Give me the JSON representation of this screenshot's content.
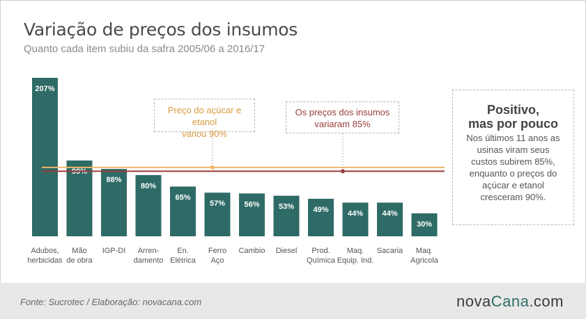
{
  "title": "Variação de preços dos insumos",
  "subtitle": "Quanto cada item subiu da safra 2005/06 a 2016/17",
  "callouts": {
    "sugar": [
      "Preço do açúcar e etanol",
      "variou 90%"
    ],
    "inputs": [
      "Os preços dos insumos",
      "variaram 85%"
    ]
  },
  "side": {
    "heading": [
      "Positivo,",
      "mas por pouco"
    ],
    "body": [
      "Nos últimos 11 anos as",
      "usinas viram seus",
      "custos subirem 85%,",
      "enquanto o preços do",
      "açúcar e etanol",
      "cresceram 90%."
    ]
  },
  "footer": {
    "source": "Fonte:  Sucrotec / Elaboração: novacana.com",
    "logo_main": "nova",
    "logo_accent": "Cana",
    "logo_tail": ".com"
  },
  "colors": {
    "bar": "#2f6b66",
    "sugar_line": "#f0b66a",
    "inputs_line": "#9a3b3b",
    "label_text": "#ffffff",
    "category_text": "#555555"
  },
  "chart_data": {
    "type": "bar",
    "categories": [
      [
        "Adubos,",
        "herbicidas"
      ],
      [
        "Mão",
        "de obra"
      ],
      [
        "IGP-DI"
      ],
      [
        "Arren-",
        "damento"
      ],
      [
        "En.",
        "Elétrica"
      ],
      [
        "Ferro",
        "Aço"
      ],
      [
        "Cambio"
      ],
      [
        "Diesel"
      ],
      [
        "Prod.",
        "Química"
      ],
      [
        "Maq.",
        "Equip. Ind."
      ],
      [
        "Sacaria"
      ],
      [
        "Maq.",
        "Agricola"
      ]
    ],
    "values": [
      207,
      99,
      88,
      80,
      65,
      57,
      56,
      53,
      49,
      44,
      44,
      30
    ],
    "value_labels": [
      "207%",
      "99%",
      "88%",
      "80%",
      "65%",
      "57%",
      "56%",
      "53%",
      "49%",
      "44%",
      "44%",
      "30%"
    ],
    "reference_lines": [
      {
        "name": "Preço do açúcar e etanol",
        "value": 90
      },
      {
        "name": "Os preços dos insumos",
        "value": 85
      }
    ],
    "ylim": [
      0,
      207
    ],
    "grid": false,
    "legend": "none"
  }
}
